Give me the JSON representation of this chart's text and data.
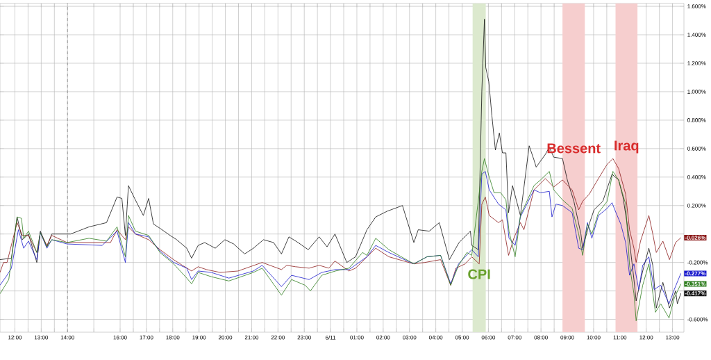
{
  "chart_data": {
    "type": "line",
    "xlim": [
      "--06-10T11:26",
      "--06-11T13:26"
    ],
    "ylim": [
      -0.69,
      1.62
    ],
    "xticks": [
      {
        "value": "--06-10T12:00",
        "label": "12:00"
      },
      {
        "value": "--06-10T12:30",
        "label": null
      },
      {
        "value": "--06-10T13:00",
        "label": "13:00"
      },
      {
        "value": "--06-10T13:30",
        "label": null
      },
      {
        "value": "--06-10T14:00",
        "label": "14:00"
      },
      {
        "value": "--06-10T15:00",
        "label": null
      },
      {
        "value": "--06-10T16:00",
        "label": "16:00"
      },
      {
        "value": "--06-10T16:30",
        "label": null
      },
      {
        "value": "--06-10T17:00",
        "label": "17:00"
      },
      {
        "value": "--06-10T17:30",
        "label": null
      },
      {
        "value": "--06-10T18:00",
        "label": "18:00"
      },
      {
        "value": "--06-10T18:30",
        "label": null
      },
      {
        "value": "--06-10T19:00",
        "label": "19:00"
      },
      {
        "value": "--06-10T19:30",
        "label": null
      },
      {
        "value": "--06-10T20:00",
        "label": "20:00"
      },
      {
        "value": "--06-10T20:30",
        "label": null
      },
      {
        "value": "--06-10T21:00",
        "label": "21:00"
      },
      {
        "value": "--06-10T21:30",
        "label": null
      },
      {
        "value": "--06-10T22:00",
        "label": "22:00"
      },
      {
        "value": "--06-10T22:30",
        "label": null
      },
      {
        "value": "--06-10T23:00",
        "label": "23:00"
      },
      {
        "value": "--06-10T23:30",
        "label": null
      },
      {
        "value": "--06-11T00:00",
        "label": "6/11"
      },
      {
        "value": "--06-11T00:30",
        "label": null
      },
      {
        "value": "--06-11T01:00",
        "label": "01:00"
      },
      {
        "value": "--06-11T01:30",
        "label": null
      },
      {
        "value": "--06-11T02:00",
        "label": "02:00"
      },
      {
        "value": "--06-11T02:30",
        "label": null
      },
      {
        "value": "--06-11T03:00",
        "label": "03:00"
      },
      {
        "value": "--06-11T03:30",
        "label": null
      },
      {
        "value": "--06-11T04:00",
        "label": "04:00"
      },
      {
        "value": "--06-11T04:30",
        "label": null
      },
      {
        "value": "--06-11T05:00",
        "label": "05:00"
      },
      {
        "value": "--06-11T05:30",
        "label": null
      },
      {
        "value": "--06-11T06:00",
        "label": "06:00"
      },
      {
        "value": "--06-11T06:30",
        "label": null
      },
      {
        "value": "--06-11T07:00",
        "label": "07:00"
      },
      {
        "value": "--06-11T07:30",
        "label": null
      },
      {
        "value": "--06-11T08:00",
        "label": "08:00"
      },
      {
        "value": "--06-11T08:30",
        "label": null
      },
      {
        "value": "--06-11T09:00",
        "label": "09:00"
      },
      {
        "value": "--06-11T09:30",
        "label": null
      },
      {
        "value": "--06-11T10:00",
        "label": "10:00"
      },
      {
        "value": "--06-11T10:30",
        "label": null
      },
      {
        "value": "--06-11T11:00",
        "label": "11:00"
      },
      {
        "value": "--06-11T11:30",
        "label": null
      },
      {
        "value": "--06-11T12:00",
        "label": "12:00"
      },
      {
        "value": "--06-11T12:30",
        "label": null
      },
      {
        "value": "--06-11T13:00",
        "label": "13:00"
      }
    ],
    "yticks": [
      {
        "value": -0.6,
        "label": "-0.600%"
      },
      {
        "value": -0.4,
        "label": null
      },
      {
        "value": -0.2,
        "label": "-0.200%"
      },
      {
        "value": 0,
        "label": null
      },
      {
        "value": 0.2,
        "label": "0.200%"
      },
      {
        "value": 0.4,
        "label": "0.400%"
      },
      {
        "value": 0.6,
        "label": "0.600%"
      },
      {
        "value": 0.8,
        "label": "0.800%"
      },
      {
        "value": 1.0,
        "label": "1.000%"
      },
      {
        "value": 1.2,
        "label": "1.200%"
      },
      {
        "value": 1.4,
        "label": "1.400%"
      },
      {
        "value": 1.6,
        "label": "1.600%"
      }
    ],
    "grid": true,
    "ref_lines": [
      {
        "axis": "x",
        "value": "--06-10T14:00",
        "color": "#888888",
        "line_style": "dashed"
      }
    ],
    "bands": [
      {
        "axis": "x",
        "from": "--06-11T05:24",
        "to": "--06-11T05:54",
        "color": "#dce9ce",
        "label": "CPI"
      },
      {
        "axis": "x",
        "from": "--06-11T08:49",
        "to": "--06-11T09:40",
        "color": "#f6cece",
        "label": "Bessent"
      },
      {
        "axis": "x",
        "from": "--06-11T10:50",
        "to": "--06-11T11:40",
        "color": "#f6cece",
        "label": "Iraq"
      }
    ],
    "series": [
      {
        "color": "#111111",
        "x": [
          "--06-10T11:26",
          "--06-10T11:52",
          "--06-10T12:05",
          "--06-10T12:17",
          "--06-10T12:31",
          "--06-10T12:50",
          "--06-10T12:58",
          "--06-10T13:13",
          "--06-10T13:24",
          "--06-10T13:48",
          "--06-10T14:07",
          "--06-10T14:49",
          "--06-10T15:29",
          "--06-10T15:53",
          "--06-10T16:04",
          "--06-10T16:12",
          "--06-10T16:19",
          "--06-10T16:33",
          "--06-10T16:53",
          "--06-10T17:05",
          "--06-10T17:16",
          "--06-10T17:31",
          "--06-10T17:54",
          "--06-10T18:09",
          "--06-10T18:32",
          "--06-10T18:43",
          "--06-10T18:58",
          "--06-10T19:13",
          "--06-10T19:37",
          "--06-10T19:59",
          "--06-10T20:19",
          "--06-10T20:44",
          "--06-10T21:04",
          "--06-10T21:27",
          "--06-10T21:50",
          "--06-10T22:08",
          "--06-10T22:25",
          "--06-10T22:46",
          "--06-10T23:09",
          "--06-10T23:34",
          "--06-10T23:52",
          "--06-11T00:10",
          "--06-11T00:37",
          "--06-11T00:57",
          "--06-11T01:23",
          "--06-11T01:43",
          "--06-11T02:09",
          "--06-11T02:44",
          "--06-11T03:10",
          "--06-11T03:20",
          "--06-11T03:45",
          "--06-11T04:08",
          "--06-11T04:31",
          "--06-11T04:53",
          "--06-11T05:19",
          "--06-11T05:22",
          "--06-11T05:37",
          "--06-11T05:45",
          "--06-11T05:51",
          "--06-11T05:54",
          "--06-11T06:01",
          "--06-11T06:08",
          "--06-11T06:16",
          "--06-11T06:25",
          "--06-11T06:32",
          "--06-11T06:40",
          "--06-11T06:46",
          "--06-11T06:55",
          "--06-11T07:13",
          "--06-11T07:33",
          "--06-11T07:44",
          "--06-11T07:49",
          "--06-11T08:10",
          "--06-11T08:19",
          "--06-11T08:29",
          "--06-11T08:49",
          "--06-11T09:00",
          "--06-11T09:15",
          "--06-11T09:31",
          "--06-11T09:35",
          "--06-11T09:50",
          "--06-11T10:01",
          "--06-11T10:21",
          "--06-11T10:42",
          "--06-11T10:57",
          "--06-11T11:07",
          "--06-11T11:20",
          "--06-11T11:32",
          "--06-11T11:37",
          "--06-11T11:52",
          "--06-11T12:06",
          "--06-11T12:15",
          "--06-11T12:23",
          "--06-11T12:38",
          "--06-11T12:53",
          "--06-11T13:07",
          "--06-11T13:11",
          "--06-11T13:19"
        ],
        "values": [
          -0.18,
          -0.17,
          0.12,
          -0.04,
          0.0,
          -0.2,
          0.02,
          -0.09,
          0.0,
          0.0,
          0.0,
          0.05,
          0.08,
          0.26,
          0.25,
          -0.01,
          0.34,
          0.25,
          0.13,
          0.25,
          0.07,
          0.04,
          -0.01,
          -0.04,
          -0.1,
          -0.17,
          -0.08,
          -0.06,
          -0.1,
          -0.04,
          -0.07,
          -0.14,
          -0.1,
          -0.04,
          -0.06,
          -0.14,
          -0.02,
          -0.06,
          -0.11,
          -0.02,
          -0.09,
          0.0,
          -0.2,
          -0.16,
          0.03,
          0.12,
          0.16,
          0.2,
          -0.06,
          0.03,
          0.02,
          0.08,
          -0.18,
          -0.06,
          0.02,
          -0.08,
          -0.11,
          1.0,
          1.51,
          1.17,
          1.07,
          0.83,
          0.59,
          0.71,
          0.57,
          0.57,
          0.15,
          0.34,
          0.13,
          0.62,
          0.52,
          0.47,
          0.56,
          0.61,
          0.54,
          0.53,
          0.38,
          0.23,
          0.0,
          -0.1,
          0.07,
          0.17,
          0.23,
          0.42,
          0.38,
          0.26,
          0.0,
          -0.32,
          -0.47,
          -0.26,
          -0.1,
          -0.22,
          -0.52,
          -0.34,
          -0.52,
          -0.4,
          -0.49,
          -0.417
        ]
      },
      {
        "color": "#8b1a1a",
        "x": [
          "--06-10T11:26",
          "--06-10T11:34",
          "--06-10T11:42",
          "--06-10T12:05",
          "--06-10T12:17",
          "--06-10T12:31",
          "--06-10T12:50",
          "--06-10T12:58",
          "--06-10T13:13",
          "--06-10T13:24",
          "--06-10T13:59",
          "--06-10T15:38",
          "--06-10T15:53",
          "--06-10T16:12",
          "--06-10T16:19",
          "--06-10T16:35",
          "--06-10T17:05",
          "--06-10T17:31",
          "--06-10T18:02",
          "--06-10T18:22",
          "--06-10T18:43",
          "--06-10T18:58",
          "--06-10T19:17",
          "--06-10T19:48",
          "--06-10T20:29",
          "--06-10T21:24",
          "--06-10T22:08",
          "--06-10T22:20",
          "--06-10T22:40",
          "--06-10T23:11",
          "--06-10T23:34",
          "--06-10T23:56",
          "--06-11T00:10",
          "--06-11T00:42",
          "--06-11T00:57",
          "--06-11T01:23",
          "--06-11T01:43",
          "--06-11T02:13",
          "--06-11T03:10",
          "--06-11T03:35",
          "--06-11T04:11",
          "--06-11T04:34",
          "--06-11T04:46",
          "--06-11T05:07",
          "--06-11T05:22",
          "--06-11T05:39",
          "--06-11T05:45",
          "--06-11T05:53",
          "--06-11T06:02",
          "--06-11T06:23",
          "--06-11T06:32",
          "--06-11T06:46",
          "--06-11T06:58",
          "--06-11T07:13",
          "--06-11T07:21",
          "--06-11T07:44",
          "--06-11T08:10",
          "--06-11T08:29",
          "--06-11T08:49",
          "--06-11T09:11",
          "--06-11T09:26",
          "--06-11T09:35",
          "--06-11T09:50",
          "--06-11T10:11",
          "--06-11T10:31",
          "--06-11T10:44",
          "--06-11T10:57",
          "--06-11T11:13",
          "--06-11T11:22",
          "--06-11T11:32",
          "--06-11T11:37",
          "--06-11T11:47",
          "--06-11T12:06",
          "--06-11T12:15",
          "--06-11T12:23",
          "--06-11T12:38",
          "--06-11T12:53",
          "--06-11T13:07",
          "--06-11T13:19"
        ],
        "values": [
          -0.27,
          -0.2,
          -0.2,
          0.08,
          -0.01,
          -0.01,
          -0.13,
          0.01,
          -0.08,
          -0.01,
          -0.06,
          -0.06,
          0.03,
          -0.04,
          0.05,
          0.0,
          -0.04,
          -0.11,
          -0.18,
          -0.22,
          -0.26,
          -0.23,
          -0.25,
          -0.27,
          -0.26,
          -0.2,
          -0.25,
          -0.22,
          -0.23,
          -0.24,
          -0.22,
          -0.24,
          -0.19,
          -0.26,
          -0.24,
          -0.16,
          -0.1,
          -0.16,
          -0.21,
          -0.2,
          -0.18,
          -0.36,
          -0.24,
          -0.21,
          -0.16,
          -0.21,
          0.21,
          0.26,
          0.13,
          0.08,
          0.1,
          -0.15,
          -0.03,
          0.08,
          0.03,
          0.31,
          0.39,
          0.33,
          0.38,
          0.31,
          0.17,
          0.23,
          0.28,
          0.39,
          0.49,
          0.53,
          0.46,
          0.28,
          0.03,
          -0.1,
          -0.2,
          -0.05,
          0.13,
          0.0,
          -0.13,
          -0.05,
          -0.18,
          -0.06,
          -0.026
        ]
      },
      {
        "color": "#1a1acc",
        "x": [
          "--06-10T11:26",
          "--06-10T11:42",
          "--06-10T11:52",
          "--06-10T12:08",
          "--06-10T12:20",
          "--06-10T12:31",
          "--06-10T12:50",
          "--06-10T12:58",
          "--06-10T13:13",
          "--06-10T13:24",
          "--06-10T13:59",
          "--06-10T15:19",
          "--06-10T15:53",
          "--06-10T16:12",
          "--06-10T16:19",
          "--06-10T16:35",
          "--06-10T17:05",
          "--06-10T17:31",
          "--06-10T18:02",
          "--06-10T18:32",
          "--06-10T18:43",
          "--06-10T18:58",
          "--06-10T19:28",
          "--06-10T20:08",
          "--06-10T21:04",
          "--06-10T21:24",
          "--06-10T22:08",
          "--06-10T22:31",
          "--06-10T23:11",
          "--06-10T23:40",
          "--06-11T00:11",
          "--06-11T00:42",
          "--06-11T01:23",
          "--06-11T01:43",
          "--06-11T02:13",
          "--06-11T03:10",
          "--06-11T03:40",
          "--06-11T04:11",
          "--06-11T04:34",
          "--06-11T04:52",
          "--06-11T05:22",
          "--06-11T05:37",
          "--06-11T05:45",
          "--06-11T05:53",
          "--06-11T06:02",
          "--06-11T06:23",
          "--06-11T06:40",
          "--06-11T06:47",
          "--06-11T07:01",
          "--06-11T07:13",
          "--06-11T07:44",
          "--06-11T07:59",
          "--06-11T08:19",
          "--06-11T08:25",
          "--06-11T08:34",
          "--06-11T08:49",
          "--06-11T09:11",
          "--06-11T09:26",
          "--06-11T09:35",
          "--06-11T09:46",
          "--06-11T09:56",
          "--06-11T10:11",
          "--06-11T10:31",
          "--06-11T10:42",
          "--06-11T10:51",
          "--06-11T11:02",
          "--06-11T11:13",
          "--06-11T11:22",
          "--06-11T11:32",
          "--06-11T11:43",
          "--06-11T11:52",
          "--06-11T12:06",
          "--06-11T12:18",
          "--06-11T12:33",
          "--06-11T12:52",
          "--06-11T13:04",
          "--06-11T13:19"
        ],
        "values": [
          -0.36,
          -0.29,
          -0.24,
          0.03,
          -0.1,
          -0.05,
          -0.18,
          0.01,
          -0.1,
          -0.04,
          -0.07,
          -0.08,
          0.02,
          -0.2,
          0.08,
          0.0,
          -0.02,
          -0.12,
          -0.2,
          -0.24,
          -0.32,
          -0.26,
          -0.27,
          -0.31,
          -0.26,
          -0.22,
          -0.37,
          -0.29,
          -0.32,
          -0.27,
          -0.25,
          -0.25,
          -0.16,
          -0.08,
          -0.13,
          -0.21,
          -0.16,
          -0.15,
          -0.35,
          -0.21,
          -0.11,
          -0.16,
          0.42,
          0.44,
          0.31,
          0.21,
          0.17,
          -0.03,
          -0.08,
          0.12,
          0.31,
          0.29,
          0.3,
          0.12,
          0.21,
          0.2,
          0.15,
          -0.1,
          -0.11,
          0.08,
          -0.03,
          0.13,
          0.18,
          0.22,
          0.15,
          0.07,
          -0.06,
          -0.29,
          -0.21,
          -0.39,
          -0.22,
          -0.16,
          -0.39,
          -0.36,
          -0.49,
          -0.39,
          -0.277
        ]
      },
      {
        "color": "#2e7d1e",
        "x": [
          "--06-10T11:26",
          "--06-10T11:46",
          "--06-10T12:05",
          "--06-10T12:15",
          "--06-10T12:20",
          "--06-10T12:31",
          "--06-10T12:50",
          "--06-10T12:58",
          "--06-10T13:13",
          "--06-10T13:24",
          "--06-10T13:59",
          "--06-10T14:49",
          "--06-10T15:29",
          "--06-10T15:53",
          "--06-10T16:12",
          "--06-10T16:19",
          "--06-10T16:35",
          "--06-10T17:05",
          "--06-10T17:31",
          "--06-10T18:02",
          "--06-10T18:32",
          "--06-10T18:43",
          "--06-10T18:58",
          "--06-10T19:28",
          "--06-10T20:08",
          "--06-10T21:04",
          "--06-10T21:24",
          "--06-10T22:08",
          "--06-10T22:31",
          "--06-10T23:02",
          "--06-10T23:14",
          "--06-10T23:40",
          "--06-11T00:11",
          "--06-11T00:42",
          "--06-11T01:13",
          "--06-11T01:23",
          "--06-11T01:43",
          "--06-11T02:13",
          "--06-11T03:10",
          "--06-11T03:40",
          "--06-11T04:11",
          "--06-11T04:34",
          "--06-11T04:52",
          "--06-11T05:11",
          "--06-11T05:22",
          "--06-11T05:45",
          "--06-11T05:51",
          "--06-11T06:01",
          "--06-11T06:13",
          "--06-11T06:28",
          "--06-11T06:40",
          "--06-11T06:47",
          "--06-11T07:01",
          "--06-11T07:13",
          "--06-11T07:44",
          "--06-11T07:59",
          "--06-11T08:19",
          "--06-11T08:29",
          "--06-11T08:49",
          "--06-11T09:11",
          "--06-11T09:26",
          "--06-11T09:35",
          "--06-11T09:46",
          "--06-11T09:56",
          "--06-11T10:11",
          "--06-11T10:31",
          "--06-11T10:44",
          "--06-11T10:57",
          "--06-11T11:13",
          "--06-11T11:22",
          "--06-11T11:32",
          "--06-11T11:37",
          "--06-11T11:52",
          "--06-11T12:06",
          "--06-11T12:21",
          "--06-11T12:33",
          "--06-11T12:52",
          "--06-11T13:04",
          "--06-11T13:19"
        ],
        "values": [
          -0.42,
          -0.32,
          0.12,
          0.11,
          -0.03,
          0.02,
          -0.13,
          0.01,
          -0.09,
          -0.04,
          -0.06,
          -0.03,
          -0.05,
          0.05,
          -0.16,
          0.13,
          0.02,
          -0.01,
          -0.13,
          -0.21,
          -0.31,
          -0.35,
          -0.27,
          -0.3,
          -0.33,
          -0.27,
          -0.24,
          -0.43,
          -0.32,
          -0.36,
          -0.4,
          -0.29,
          -0.26,
          -0.24,
          -0.13,
          -0.15,
          -0.03,
          -0.11,
          -0.21,
          -0.16,
          -0.15,
          -0.36,
          -0.22,
          -0.13,
          -0.15,
          0.44,
          0.53,
          0.41,
          0.29,
          0.29,
          0.24,
          0.02,
          -0.16,
          0.13,
          0.34,
          0.38,
          0.44,
          0.31,
          0.24,
          0.18,
          0.0,
          -0.15,
          0.07,
          0.0,
          0.15,
          0.23,
          0.44,
          0.38,
          0.21,
          -0.22,
          -0.42,
          -0.61,
          -0.36,
          -0.21,
          -0.55,
          -0.49,
          -0.59,
          -0.45,
          -0.351
        ]
      }
    ],
    "annotations": [
      {
        "text": "-0.026%",
        "x": "--06-11T13:19",
        "y": -0.026
      },
      {
        "text": "-0.277%",
        "x": "--06-11T13:19",
        "y": -0.277
      },
      {
        "text": "-0.351%",
        "x": "--06-11T13:19",
        "y": -0.351
      },
      {
        "text": "-0.417%",
        "x": "--06-11T13:19",
        "y": -0.417
      }
    ]
  }
}
